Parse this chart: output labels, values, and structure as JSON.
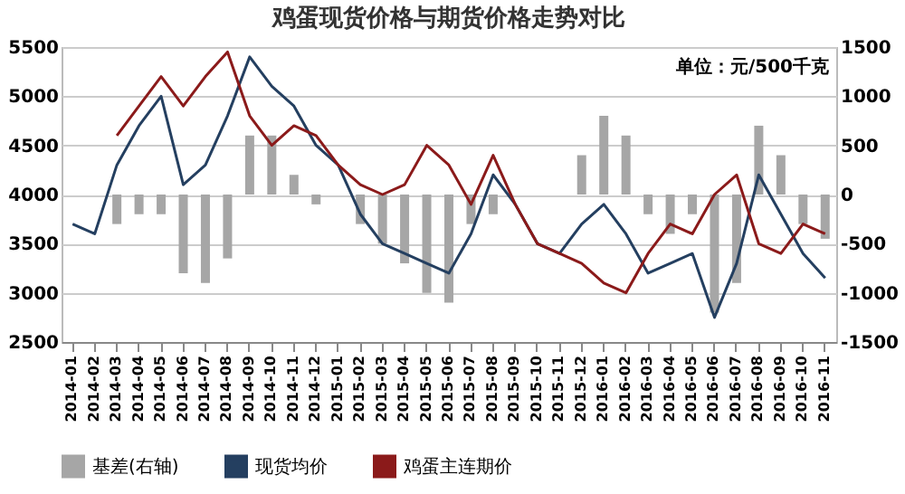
{
  "chart_data": {
    "type": "line",
    "title": "鸡蛋现货价格与期货价格走势对比",
    "categories": [
      "2014-01",
      "2014-02",
      "2014-03",
      "2014-04",
      "2014-05",
      "2014-06",
      "2014-07",
      "2014-08",
      "2014-09",
      "2014-10",
      "2014-11",
      "2014-12",
      "2015-01",
      "2015-02",
      "2015-03",
      "2015-04",
      "2015-05",
      "2015-06",
      "2015-07",
      "2015-08",
      "2015-09",
      "2015-10",
      "2015-11",
      "2015-12",
      "2016-01",
      "2016-02",
      "2016-03",
      "2016-04",
      "2016-05",
      "2016-06",
      "2016-07",
      "2016-08",
      "2016-09",
      "2016-10",
      "2016-11"
    ],
    "series": [
      {
        "name": "基差(右轴)",
        "type": "bar",
        "axis": "y2",
        "color": "#a6a6a6",
        "values": [
          null,
          null,
          -300,
          -200,
          -200,
          -800,
          -900,
          -650,
          600,
          600,
          200,
          -100,
          0,
          -300,
          -500,
          -700,
          -1000,
          -1100,
          -300,
          -200,
          0,
          0,
          0,
          400,
          800,
          600,
          -200,
          -400,
          -200,
          -1200,
          -900,
          700,
          400,
          -300,
          -450
        ]
      },
      {
        "name": "现货均价",
        "color": "#243f60",
        "values": [
          3700,
          3600,
          4300,
          4700,
          5000,
          4100,
          4300,
          4800,
          5400,
          5100,
          4900,
          4500,
          4300,
          3800,
          3500,
          3400,
          3300,
          3200,
          3600,
          4200,
          3900,
          3500,
          3400,
          3700,
          3900,
          3600,
          3200,
          3300,
          3400,
          2750,
          3300,
          4200,
          3800,
          3400,
          3150
        ]
      },
      {
        "name": "鸡蛋主连期价",
        "color": "#8b1a1a",
        "values": [
          null,
          null,
          4600,
          4900,
          5200,
          4900,
          5200,
          5450,
          4800,
          4500,
          4700,
          4600,
          4300,
          4100,
          4000,
          4100,
          4500,
          4300,
          3900,
          4400,
          3900,
          3500,
          3400,
          3300,
          3100,
          3000,
          3400,
          3700,
          3600,
          4000,
          4200,
          3500,
          3400,
          3700,
          3600
        ]
      }
    ],
    "ylim": [
      2500,
      5500
    ],
    "yticks": [
      2500,
      3000,
      3500,
      4000,
      4500,
      5000,
      5500
    ],
    "y2lim": [
      -1500,
      1500
    ],
    "y2ticks": [
      -1500,
      -1000,
      -500,
      0,
      500,
      1000,
      1500
    ],
    "grid": "y",
    "legend": "bottom",
    "annotations": [
      "单位：元/500千克"
    ]
  }
}
